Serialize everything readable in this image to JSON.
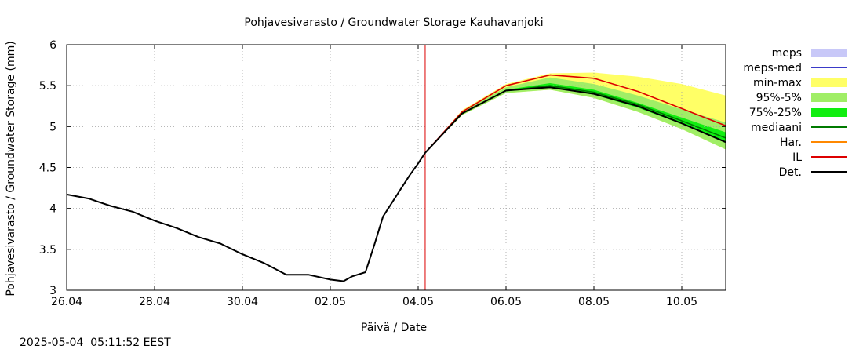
{
  "chart_data": {
    "type": "line",
    "title": "Pohjavesivarasto / Groundwater Storage   Kauhavanjoki",
    "xlabel": "Päivä / Date",
    "ylabel": "Pohjavesivarasto / Groundwater Storage (mm)",
    "x_unit": "days since 26.04",
    "xlim": [
      0,
      15
    ],
    "ylim": [
      3,
      6
    ],
    "x_ticks": [
      {
        "x": 0,
        "label": "26.04"
      },
      {
        "x": 2,
        "label": "28.04"
      },
      {
        "x": 4,
        "label": "30.04"
      },
      {
        "x": 6,
        "label": "02.05"
      },
      {
        "x": 8,
        "label": "04.05"
      },
      {
        "x": 10,
        "label": "06.05"
      },
      {
        "x": 12,
        "label": "08.05"
      },
      {
        "x": 14,
        "label": "10.05"
      }
    ],
    "y_ticks": [
      {
        "y": 3,
        "label": "3"
      },
      {
        "y": 3.5,
        "label": "3.5"
      },
      {
        "y": 4,
        "label": "4"
      },
      {
        "y": 4.5,
        "label": "4.5"
      },
      {
        "y": 5,
        "label": "5"
      },
      {
        "y": 5.5,
        "label": "5.5"
      },
      {
        "y": 6,
        "label": "6"
      }
    ],
    "grid": true,
    "forecast_start_x": 8.16,
    "legend": [
      {
        "label": "meps",
        "color": "#c8c8f8",
        "kind": "box"
      },
      {
        "label": "meps-med",
        "color": "#3a3ac8",
        "kind": "line"
      },
      {
        "label": "min-max",
        "color": "#ffff66",
        "kind": "box"
      },
      {
        "label": "95%-5%",
        "color": "#a0ee66",
        "kind": "box"
      },
      {
        "label": "75%-25%",
        "color": "#10ee10",
        "kind": "box"
      },
      {
        "label": "mediaani",
        "color": "#007a00",
        "kind": "line"
      },
      {
        "label": "Har.",
        "color": "#ff8800",
        "kind": "line"
      },
      {
        "label": "IL",
        "color": "#dd0000",
        "kind": "line"
      },
      {
        "label": "Det.",
        "color": "#000000",
        "kind": "line"
      }
    ],
    "series": [
      {
        "name": "Det. (observed)",
        "color": "#000000",
        "x": [
          0,
          0.5,
          1,
          1.5,
          2,
          2.5,
          3,
          3.5,
          4,
          4.5,
          5,
          5.5,
          6,
          6.3,
          6.5,
          6.8,
          7,
          7.2,
          7.5,
          7.8,
          8,
          8.16
        ],
        "y": [
          4.17,
          4.12,
          4.03,
          3.96,
          3.85,
          3.76,
          3.65,
          3.57,
          3.44,
          3.33,
          3.19,
          3.19,
          3.13,
          3.11,
          3.17,
          3.22,
          3.55,
          3.9,
          4.15,
          4.4,
          4.55,
          4.68
        ]
      },
      {
        "name": "min-max max",
        "color": "#ffff66",
        "x": [
          8.16,
          9,
          10,
          11,
          12,
          13,
          14,
          15
        ],
        "y": [
          4.68,
          5.2,
          5.52,
          5.65,
          5.66,
          5.61,
          5.52,
          5.38
        ]
      },
      {
        "name": "min-max min",
        "color": "#ffff66",
        "x": [
          8.16,
          9,
          10,
          11,
          12,
          13,
          14,
          15
        ],
        "y": [
          4.68,
          5.14,
          5.41,
          5.45,
          5.35,
          5.18,
          4.97,
          4.72
        ]
      },
      {
        "name": "95%-5% upper",
        "color": "#a0ee66",
        "x": [
          8.16,
          9,
          10,
          11,
          12,
          13,
          14,
          15
        ],
        "y": [
          4.68,
          5.18,
          5.48,
          5.6,
          5.52,
          5.38,
          5.21,
          5.05
        ]
      },
      {
        "name": "95%-5% lower",
        "color": "#a0ee66",
        "x": [
          8.16,
          9,
          10,
          11,
          12,
          13,
          14,
          15
        ],
        "y": [
          4.68,
          5.14,
          5.41,
          5.45,
          5.35,
          5.18,
          4.97,
          4.72
        ]
      },
      {
        "name": "75%-25% upper",
        "color": "#10ee10",
        "x": [
          8.16,
          9,
          10,
          11,
          12,
          13,
          14,
          15
        ],
        "y": [
          4.68,
          5.17,
          5.45,
          5.53,
          5.45,
          5.29,
          5.11,
          4.93
        ]
      },
      {
        "name": "75%-25% lower",
        "color": "#10ee10",
        "x": [
          8.16,
          9,
          10,
          11,
          12,
          13,
          14,
          15
        ],
        "y": [
          4.68,
          5.15,
          5.43,
          5.48,
          5.39,
          5.23,
          5.03,
          4.8
        ]
      },
      {
        "name": "mediaani",
        "color": "#007a00",
        "x": [
          8.16,
          9,
          10,
          11,
          12,
          13,
          14,
          15
        ],
        "y": [
          4.68,
          5.16,
          5.44,
          5.5,
          5.42,
          5.27,
          5.07,
          4.86
        ]
      },
      {
        "name": "IL",
        "color": "#dd0000",
        "x": [
          8.16,
          9,
          10,
          11,
          12,
          13,
          14,
          15
        ],
        "y": [
          4.68,
          5.18,
          5.5,
          5.63,
          5.59,
          5.43,
          5.22,
          5.01
        ]
      },
      {
        "name": "Det. (forecast)",
        "color": "#000000",
        "x": [
          8.16,
          9,
          10,
          11,
          12,
          13,
          14,
          15
        ],
        "y": [
          4.68,
          5.16,
          5.44,
          5.48,
          5.4,
          5.25,
          5.04,
          4.81
        ]
      }
    ]
  },
  "footer": {
    "timestamp": "2025-05-04  05:11:52 EEST"
  }
}
